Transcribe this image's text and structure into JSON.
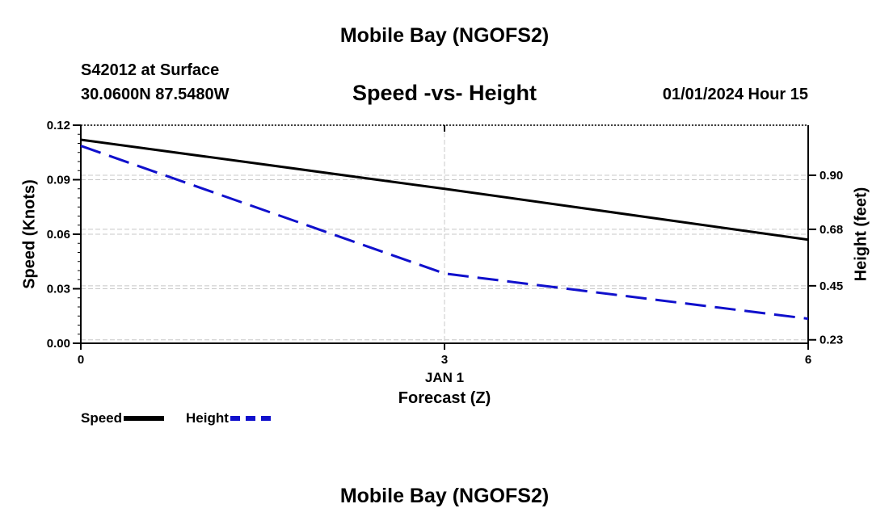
{
  "header": {
    "title": "Mobile Bay (NGOFS2)",
    "station": "S42012 at Surface",
    "coords": "30.0600N  87.5480W",
    "subtitle": "Speed -vs- Height",
    "datetime": "01/01/2024 Hour 15"
  },
  "footer": {
    "title": "Mobile Bay (NGOFS2)"
  },
  "legend": {
    "speed": "Speed",
    "height": "Height"
  },
  "colors": {
    "speed": "#000000",
    "height": "#1010cc",
    "grid": "#c8c8c8"
  },
  "chart_data": {
    "type": "line",
    "title": "Speed -vs- Height",
    "xlabel": "Forecast (Z)",
    "x_date_label": "JAN 1",
    "ylabel": "Speed (Knots)",
    "y2label": "Height (feet)",
    "xlim": [
      0,
      6
    ],
    "ylim": [
      0,
      0.12
    ],
    "y2lim": [
      0.216,
      1.104
    ],
    "xticks": [
      0,
      3,
      6
    ],
    "xtick_labels": [
      "0",
      "3",
      "6"
    ],
    "yticks": [
      0,
      0.03,
      0.06,
      0.09,
      0.12
    ],
    "ytick_labels": [
      "0.00",
      "0.03",
      "0.06",
      "0.09",
      "0.12"
    ],
    "y2ticks": [
      0.23,
      0.45,
      0.68,
      0.9
    ],
    "y2tick_labels": [
      "0.23",
      "0.45",
      "0.68",
      "0.90"
    ],
    "grid": true,
    "series": [
      {
        "name": "Speed",
        "axis": "left",
        "style": "solid",
        "x": [
          0,
          3,
          6
        ],
        "y": [
          0.112,
          0.085,
          0.057
        ]
      },
      {
        "name": "Height",
        "axis": "right",
        "style": "dashed",
        "x": [
          0,
          3,
          6
        ],
        "y": [
          1.02,
          0.5,
          0.316
        ]
      }
    ]
  }
}
